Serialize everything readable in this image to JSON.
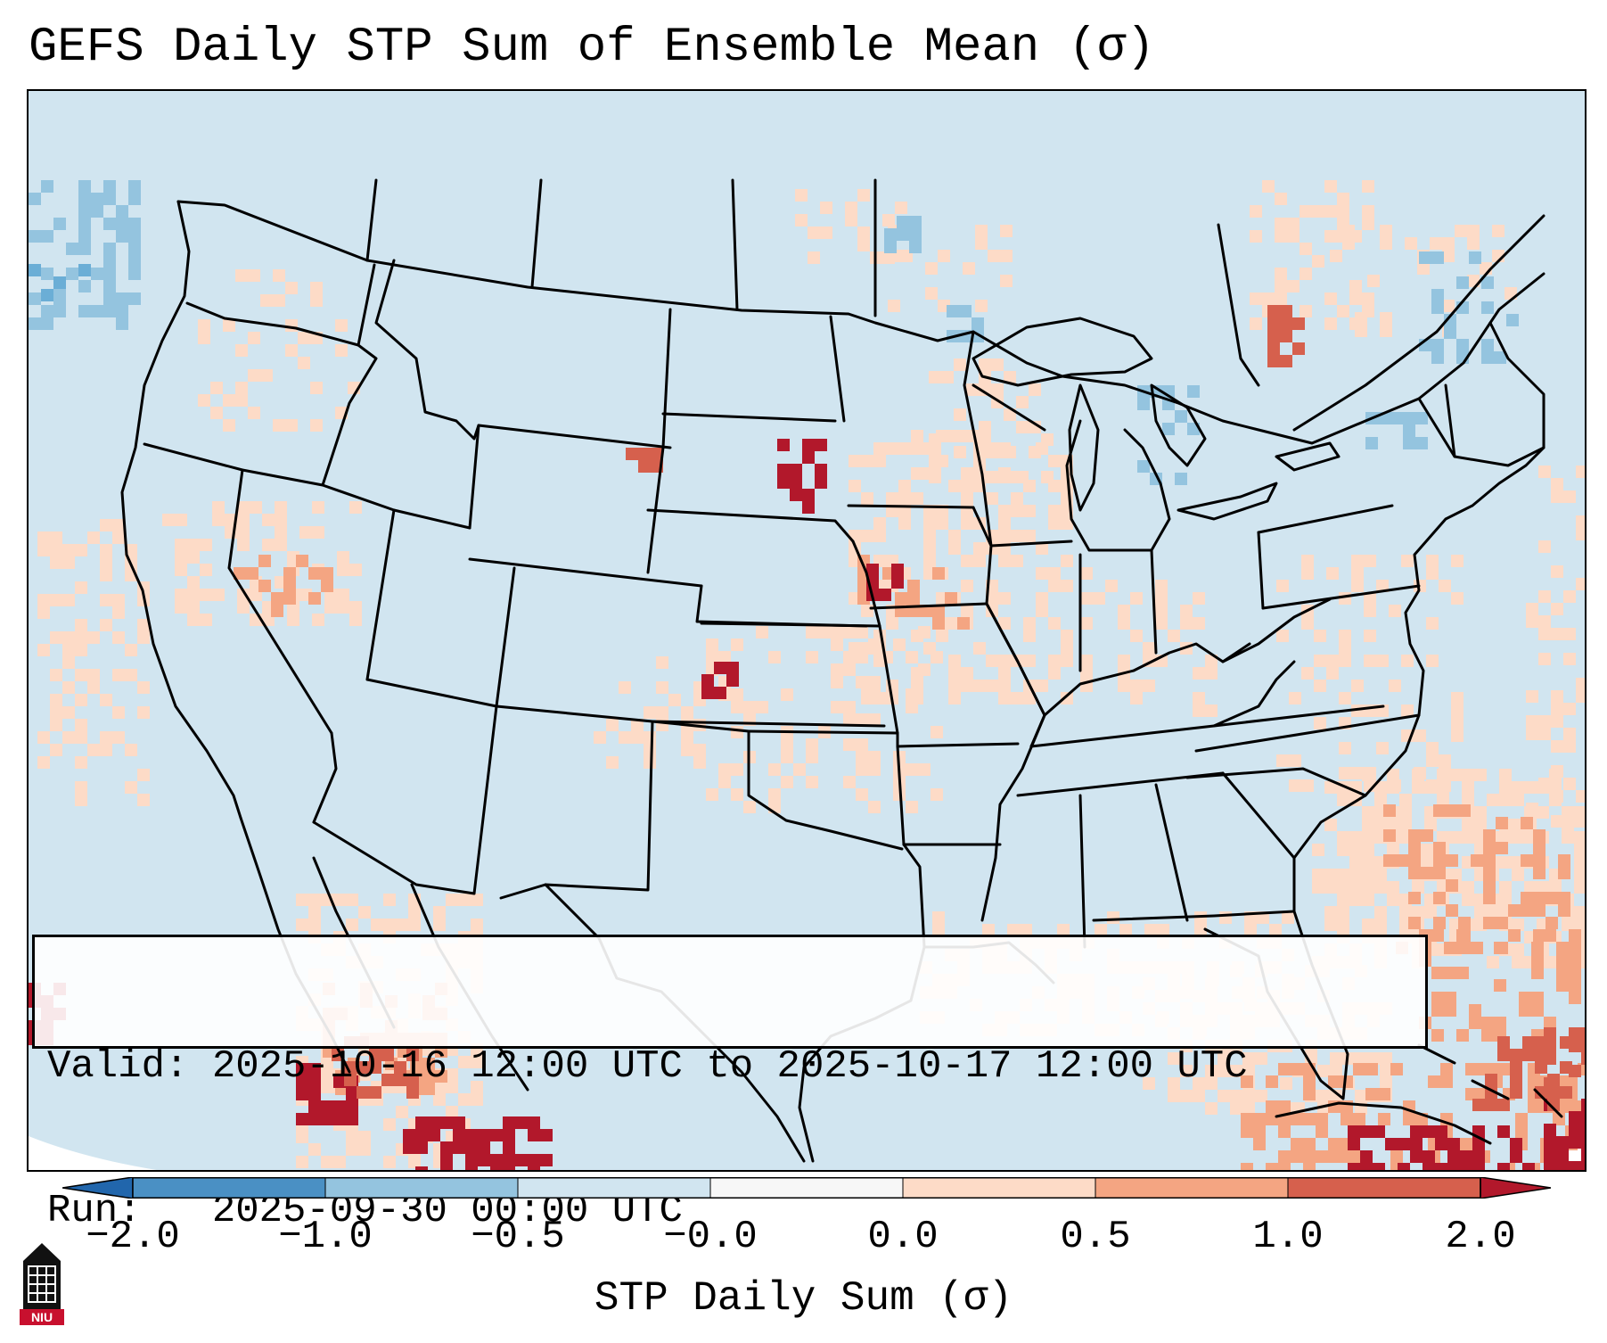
{
  "title": "GEFS Daily STP Sum of Ensemble Mean (σ)",
  "info_box": {
    "valid_line": "Valid: 2025-10-16 12:00 UTC to 2025-10-17 12:00 UTC",
    "run_line": "Run:   2025-09-30 00:00 UTC"
  },
  "colorbar": {
    "label": "STP Daily Sum (σ)",
    "ticks": [
      "−2.0",
      "−1.0",
      "−0.5",
      "−0.0",
      "0.0",
      "0.5",
      "1.0",
      "2.0"
    ],
    "bins": [
      {
        "from": -2.0,
        "to": -1.0,
        "color": "#4a90c4"
      },
      {
        "from": -1.0,
        "to": -0.5,
        "color": "#94c4df"
      },
      {
        "from": -0.5,
        "to": -0.0,
        "color": "#d1e5f0"
      },
      {
        "from": -0.0,
        "to": 0.0,
        "color": "#f7f7f7"
      },
      {
        "from": 0.0,
        "to": 0.5,
        "color": "#fddbc7"
      },
      {
        "from": 0.5,
        "to": 1.0,
        "color": "#f4a582"
      },
      {
        "from": 1.0,
        "to": 2.0,
        "color": "#d6604d"
      }
    ],
    "extend_low_color": "#2166ac",
    "extend_high_color": "#b2182b"
  },
  "colors": {
    "background_fill": "#d1e5f0",
    "outside_projection": "#ffffff",
    "boundary_lines": "#000000"
  },
  "logo": {
    "text": "NIU",
    "color": "#c8102e"
  }
}
